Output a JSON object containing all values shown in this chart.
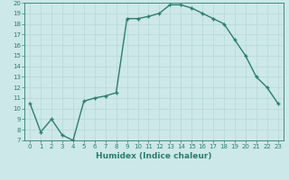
{
  "x": [
    0,
    1,
    2,
    3,
    4,
    5,
    6,
    7,
    8,
    9,
    10,
    11,
    12,
    13,
    14,
    15,
    16,
    17,
    18,
    19,
    20,
    21,
    22,
    23
  ],
  "y": [
    10.5,
    7.8,
    9.0,
    7.5,
    7.0,
    10.7,
    11.0,
    11.2,
    11.5,
    18.5,
    18.5,
    18.7,
    19.0,
    19.8,
    19.8,
    19.5,
    19.0,
    18.5,
    18.0,
    16.5,
    15.0,
    13.0,
    12.0,
    10.5
  ],
  "ylim": [
    7,
    20
  ],
  "xlim": [
    -0.5,
    23.5
  ],
  "yticks": [
    7,
    8,
    9,
    10,
    11,
    12,
    13,
    14,
    15,
    16,
    17,
    18,
    19,
    20
  ],
  "xticks": [
    0,
    1,
    2,
    3,
    4,
    5,
    6,
    7,
    8,
    9,
    10,
    11,
    12,
    13,
    14,
    15,
    16,
    17,
    18,
    19,
    20,
    21,
    22,
    23
  ],
  "xlabel": "Humidex (Indice chaleur)",
  "line_color": "#2e7d6e",
  "marker": "+",
  "marker_size": 3.0,
  "bg_color": "#cce8e8",
  "grid_color": "#b8d8d8",
  "line_width": 1.0,
  "tick_fontsize": 5.0,
  "xlabel_fontsize": 6.5
}
